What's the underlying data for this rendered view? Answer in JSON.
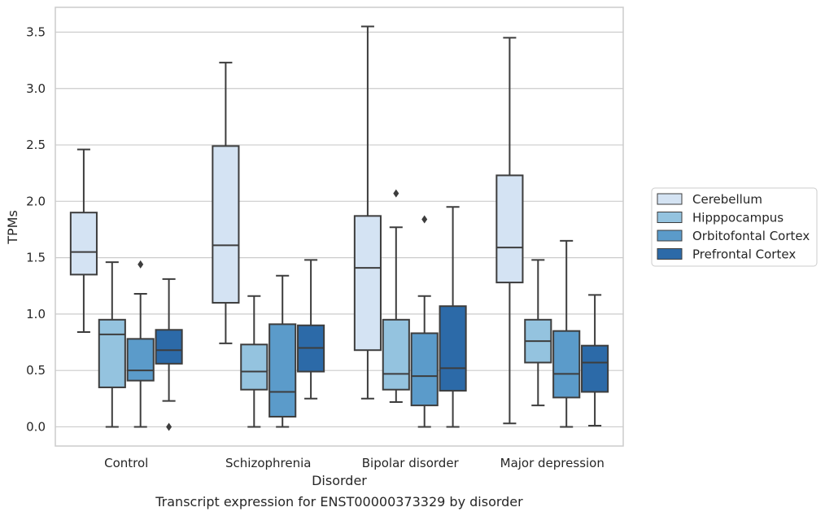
{
  "chart_data": {
    "type": "box",
    "title": "Transcript expression for ENST00000373329 by disorder",
    "xlabel": "Disorder",
    "ylabel": "TPMs",
    "ylim": [
      -0.17,
      3.72
    ],
    "yticks": [
      "0.0",
      "0.5",
      "1.0",
      "1.5",
      "2.0",
      "2.5",
      "3.0",
      "3.5"
    ],
    "grid": true,
    "legend_position": "right",
    "categories": [
      "Control",
      "Schizophrenia",
      "Bipolar disorder",
      "Major depression"
    ],
    "series": [
      {
        "name": "Cerebellum",
        "color": "#d4e3f3",
        "boxes": [
          {
            "q1": 1.35,
            "median": 1.55,
            "q3": 1.9,
            "whisker_low": 0.84,
            "whisker_high": 2.46,
            "outliers": []
          },
          {
            "q1": 1.1,
            "median": 1.61,
            "q3": 2.49,
            "whisker_low": 0.74,
            "whisker_high": 3.23,
            "outliers": []
          },
          {
            "q1": 0.68,
            "median": 1.41,
            "q3": 1.87,
            "whisker_low": 0.25,
            "whisker_high": 3.55,
            "outliers": []
          },
          {
            "q1": 1.28,
            "median": 1.59,
            "q3": 2.23,
            "whisker_low": 0.03,
            "whisker_high": 3.45,
            "outliers": []
          }
        ]
      },
      {
        "name": "Hipppocampus",
        "color": "#94c3df",
        "boxes": [
          {
            "q1": 0.35,
            "median": 0.82,
            "q3": 0.95,
            "whisker_low": 0.0,
            "whisker_high": 1.46,
            "outliers": []
          },
          {
            "q1": 0.33,
            "median": 0.49,
            "q3": 0.73,
            "whisker_low": 0.0,
            "whisker_high": 1.16,
            "outliers": []
          },
          {
            "q1": 0.33,
            "median": 0.47,
            "q3": 0.95,
            "whisker_low": 0.22,
            "whisker_high": 1.77,
            "outliers": [
              2.07
            ]
          },
          {
            "q1": 0.57,
            "median": 0.76,
            "q3": 0.95,
            "whisker_low": 0.19,
            "whisker_high": 1.48,
            "outliers": []
          }
        ]
      },
      {
        "name": "Orbitofontal Cortex",
        "color": "#5b9bca",
        "boxes": [
          {
            "q1": 0.41,
            "median": 0.5,
            "q3": 0.78,
            "whisker_low": 0.0,
            "whisker_high": 1.18,
            "outliers": [
              1.44
            ]
          },
          {
            "q1": 0.09,
            "median": 0.31,
            "q3": 0.91,
            "whisker_low": 0.0,
            "whisker_high": 1.34,
            "outliers": []
          },
          {
            "q1": 0.19,
            "median": 0.45,
            "q3": 0.83,
            "whisker_low": 0.0,
            "whisker_high": 1.16,
            "outliers": [
              1.84
            ]
          },
          {
            "q1": 0.26,
            "median": 0.47,
            "q3": 0.85,
            "whisker_low": 0.0,
            "whisker_high": 1.65,
            "outliers": []
          }
        ]
      },
      {
        "name": "Prefrontal Cortex",
        "color": "#2c6aa8",
        "boxes": [
          {
            "q1": 0.56,
            "median": 0.68,
            "q3": 0.86,
            "whisker_low": 0.23,
            "whisker_high": 1.31,
            "outliers": [
              0.0
            ]
          },
          {
            "q1": 0.49,
            "median": 0.7,
            "q3": 0.9,
            "whisker_low": 0.25,
            "whisker_high": 1.48,
            "outliers": []
          },
          {
            "q1": 0.32,
            "median": 0.52,
            "q3": 1.07,
            "whisker_low": 0.0,
            "whisker_high": 1.95,
            "outliers": []
          },
          {
            "q1": 0.31,
            "median": 0.57,
            "q3": 0.72,
            "whisker_low": 0.01,
            "whisker_high": 1.17,
            "outliers": []
          }
        ]
      }
    ]
  }
}
